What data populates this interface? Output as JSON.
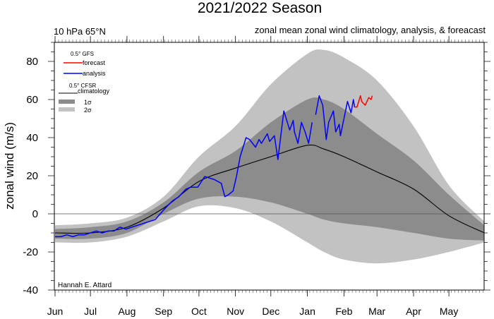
{
  "chart_data": {
    "type": "line",
    "title": "2021/2022 Season",
    "subtitle_left": "10 hPa 65°N",
    "subtitle_right": "zonal mean zonal wind climatology, analysis, & foreacast",
    "ylabel": "zonal wind (m/s)",
    "xlabel": "",
    "ylim": [
      -40,
      90
    ],
    "xlim": [
      "2021-06-01",
      "2022-05-31"
    ],
    "yticks": [
      -40,
      -20,
      0,
      20,
      40,
      60,
      80
    ],
    "xticks": [
      {
        "date": "2021-06-01",
        "label": "Jun"
      },
      {
        "date": "2021-07-01",
        "label": "Jul"
      },
      {
        "date": "2021-08-01",
        "label": "Aug"
      },
      {
        "date": "2021-09-01",
        "label": "Sep"
      },
      {
        "date": "2021-10-01",
        "label": "Oct"
      },
      {
        "date": "2021-11-01",
        "label": "Nov"
      },
      {
        "date": "2021-12-01",
        "label": "Dec"
      },
      {
        "date": "2022-01-01",
        "label": "Jan"
      },
      {
        "date": "2022-02-01",
        "label": "Feb"
      },
      {
        "date": "2022-03-01",
        "label": "Mar"
      },
      {
        "date": "2022-04-01",
        "label": "Apr"
      },
      {
        "date": "2022-05-01",
        "label": "May"
      }
    ],
    "grid": false,
    "zero_line": true,
    "legend": {
      "placement": "top-left",
      "gfs_header": "0.5° GFS",
      "cfsr_header": "0.5° CFSR",
      "forecast": "forecast",
      "analysis": "analysis",
      "climatology": "climatology",
      "sigma1": "1σ",
      "sigma2": "2σ"
    },
    "credit": "Hannah E. Attard",
    "colors": {
      "forecast": "#ff0000",
      "analysis": "#0000ff",
      "climatology": "#000000",
      "sigma1": "#8c8c8c",
      "sigma2": "#c2c2c2"
    },
    "band_dates": [
      "2021-06-01",
      "2021-07-01",
      "2021-08-01",
      "2021-09-01",
      "2021-10-01",
      "2021-11-01",
      "2021-12-01",
      "2022-01-01",
      "2022-01-15",
      "2022-02-01",
      "2022-03-01",
      "2022-04-01",
      "2022-05-01",
      "2022-05-31"
    ],
    "climatology": [
      -10,
      -10,
      -7,
      3,
      17,
      24,
      30,
      36,
      34,
      30,
      22,
      13,
      -1,
      -10
    ],
    "sigma1_upper": [
      -8,
      -7,
      -4,
      6,
      22,
      33,
      48,
      60,
      60,
      55,
      42,
      28,
      10,
      -6
    ],
    "sigma1_lower": [
      -13,
      -13,
      -10,
      0,
      8,
      9,
      6,
      0,
      -3,
      -5,
      -7,
      -10,
      -13,
      -14
    ],
    "sigma2_upper": [
      -6,
      -5,
      -2,
      9,
      30,
      46,
      68,
      84,
      86,
      82,
      70,
      46,
      15,
      -4
    ],
    "sigma2_lower": [
      -15,
      -15,
      -12,
      -4,
      4,
      3,
      -4,
      -15,
      -20,
      -24,
      -26,
      -24,
      -20,
      -15
    ],
    "analysis": [
      [
        "2021-06-01",
        -12
      ],
      [
        "2021-06-06",
        -12
      ],
      [
        "2021-06-11",
        -11
      ],
      [
        "2021-06-16",
        -12
      ],
      [
        "2021-06-21",
        -11
      ],
      [
        "2021-06-26",
        -11
      ],
      [
        "2021-07-01",
        -10
      ],
      [
        "2021-07-06",
        -9
      ],
      [
        "2021-07-11",
        -10
      ],
      [
        "2021-07-16",
        -9
      ],
      [
        "2021-07-21",
        -9
      ],
      [
        "2021-07-26",
        -7
      ],
      [
        "2021-07-31",
        -8
      ],
      [
        "2021-08-05",
        -7
      ],
      [
        "2021-08-10",
        -6
      ],
      [
        "2021-08-15",
        -5
      ],
      [
        "2021-08-20",
        -4
      ],
      [
        "2021-08-25",
        -3
      ],
      [
        "2021-09-01",
        2
      ],
      [
        "2021-09-04",
        4
      ],
      [
        "2021-09-09",
        7
      ],
      [
        "2021-09-14",
        9
      ],
      [
        "2021-09-20",
        13
      ],
      [
        "2021-09-24",
        14
      ],
      [
        "2021-09-30",
        14
      ],
      [
        "2021-10-06",
        19.6
      ],
      [
        "2021-10-09",
        19
      ],
      [
        "2021-10-14",
        18
      ],
      [
        "2021-10-20",
        16
      ],
      [
        "2021-10-23",
        9
      ],
      [
        "2021-10-26",
        10
      ],
      [
        "2021-10-30",
        12
      ],
      [
        "2021-11-02",
        20
      ],
      [
        "2021-11-05",
        30
      ],
      [
        "2021-11-10",
        40
      ],
      [
        "2021-11-13",
        39
      ],
      [
        "2021-11-18",
        35
      ],
      [
        "2021-11-21",
        39
      ],
      [
        "2021-11-23",
        37
      ],
      [
        "2021-11-28",
        42
      ],
      [
        "2021-11-30",
        38
      ],
      [
        "2021-12-04",
        41
      ],
      [
        "2021-12-07",
        28.5
      ],
      [
        "2021-12-12",
        54
      ],
      [
        "2021-12-17",
        44
      ],
      [
        "2021-12-20",
        49
      ],
      [
        "2021-12-21",
        43
      ],
      [
        "2021-12-24",
        37
      ],
      [
        "2021-12-27",
        48
      ],
      [
        "2021-12-30",
        43
      ],
      [
        "2022-01-02",
        37
      ],
      [
        "2022-01-05",
        48
      ],
      [
        "2022-01-06",
        null
      ],
      [
        "2022-01-08",
        52
      ],
      [
        "2022-01-11",
        62
      ],
      [
        "2022-01-14",
        57
      ],
      [
        "2022-01-17",
        39
      ],
      [
        "2022-01-19",
        48
      ],
      [
        "2022-01-23",
        54
      ],
      [
        "2022-01-25",
        43
      ],
      [
        "2022-01-28",
        47
      ],
      [
        "2022-01-29",
        41
      ],
      [
        "2022-02-01",
        50
      ],
      [
        "2022-02-04",
        59
      ],
      [
        "2022-02-07",
        53
      ],
      [
        "2022-02-09",
        60
      ],
      [
        "2022-02-10",
        56
      ]
    ],
    "forecast": [
      [
        "2022-02-10",
        56
      ],
      [
        "2022-02-12",
        56
      ],
      [
        "2022-02-15",
        62
      ],
      [
        "2022-02-16",
        59
      ],
      [
        "2022-02-19",
        57
      ],
      [
        "2022-02-22",
        61
      ],
      [
        "2022-02-24",
        60
      ],
      [
        "2022-02-25",
        62
      ]
    ]
  }
}
